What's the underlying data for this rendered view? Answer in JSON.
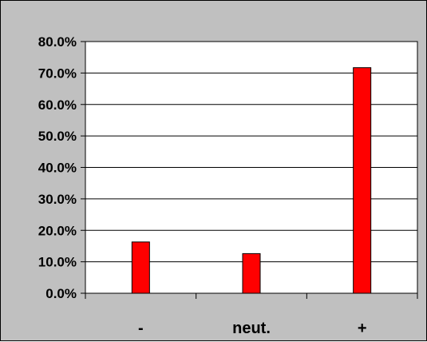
{
  "chart_data": {
    "type": "bar",
    "title": "",
    "xlabel": "",
    "ylabel": "",
    "categories": [
      "-",
      "neut.",
      "+"
    ],
    "values": [
      16.3,
      12.6,
      71.7
    ],
    "ylim": [
      0,
      80
    ],
    "yticks": [
      0,
      10,
      20,
      30,
      40,
      50,
      60,
      70,
      80
    ],
    "ytick_labels": [
      "0.0%",
      "10.0%",
      "20.0%",
      "30.0%",
      "40.0%",
      "50.0%",
      "60.0%",
      "70.0%",
      "80.0%"
    ],
    "value_format": "percent",
    "grid": true,
    "legend": "none",
    "colors": {
      "bar_fill": "#ff0000",
      "bar_stroke": "#000000",
      "plot_background": "#ffffff",
      "chart_background": "#c0c0c0",
      "gridline": "#000000"
    }
  }
}
